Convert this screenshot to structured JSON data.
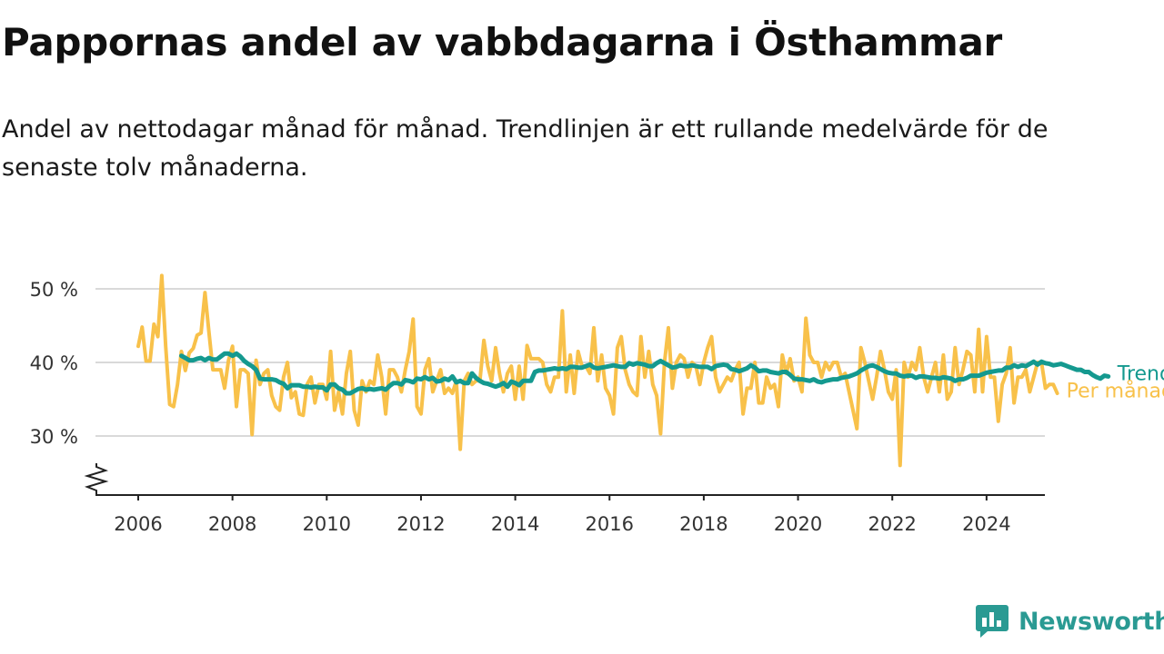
{
  "header": {
    "title": "Pappornas andel av vabbdagarna i Östhammar",
    "subtitle": "Andel av nettodagar månad för månad. Trendlinjen är ett rullande medelvärde för de senaste tolv månaderna."
  },
  "brand": {
    "name": "Newsworthy",
    "icon": "bar-chart-logo-icon"
  },
  "colors": {
    "monthly": "#f8c14a",
    "trend": "#14998f",
    "grid": "#d9d9d9",
    "axis": "#222222"
  },
  "chart_data": {
    "type": "line",
    "title": "Pappornas andel av vabbdagarna i Östhammar",
    "xlabel": "",
    "ylabel": "",
    "xlim": [
      2006.0,
      2024.35
    ],
    "ylim": [
      22,
      50
    ],
    "y_axis_break": true,
    "y_ticks": [
      30,
      40,
      50
    ],
    "y_tick_labels": [
      "30 %",
      "40 %",
      "50 %"
    ],
    "x_ticks": [
      2006,
      2008,
      2010,
      2012,
      2014,
      2016,
      2018,
      2020,
      2022,
      2024
    ],
    "x_tick_labels": [
      "2006",
      "2008",
      "2010",
      "2012",
      "2014",
      "2016",
      "2018",
      "2020",
      "2022",
      "2024"
    ],
    "grid": true,
    "legend": "direct labels at line ends, right",
    "series": [
      {
        "name": "Per månad",
        "start": 2006.0,
        "step_months": 1,
        "values": [
          42.2,
          44.8,
          40.2,
          40.2,
          45.2,
          43.5,
          51.8,
          42.2,
          34.3,
          34.0,
          37.0,
          41.5,
          38.9,
          41.3,
          41.9,
          43.7,
          44.0,
          49.5,
          44.2,
          39.0,
          39.0,
          39.0,
          36.5,
          40.3,
          42.2,
          34.0,
          39.0,
          39.0,
          38.5,
          30.2,
          40.3,
          37.0,
          38.5,
          39.0,
          35.5,
          34.0,
          33.5,
          38.0,
          40.0,
          35.2,
          36.0,
          33.0,
          32.8,
          37.0,
          38.0,
          34.5,
          37.0,
          37.0,
          35.0,
          41.5,
          33.5,
          36.0,
          33.0,
          38.5,
          41.5,
          33.5,
          31.5,
          37.5,
          36.0,
          37.5,
          37.0,
          41.0,
          38.0,
          33.0,
          39.0,
          39.0,
          38.0,
          36.0,
          39.0,
          41.5,
          45.9,
          34.0,
          33.0,
          39.0,
          40.5,
          36.0,
          37.5,
          39.0,
          35.8,
          36.5,
          35.8,
          37.5,
          28.2,
          37.5,
          38.5,
          37.0,
          37.5,
          37.5,
          43.0,
          39.5,
          37.5,
          42.0,
          38.5,
          36.0,
          38.5,
          39.5,
          35.0,
          39.5,
          35.0,
          42.3,
          40.5,
          40.5,
          40.5,
          40.0,
          37.0,
          36.0,
          38.0,
          38.0,
          47.0,
          36.0,
          41.0,
          35.8,
          41.5,
          39.5,
          39.5,
          38.5,
          44.7,
          37.5,
          41.0,
          36.5,
          35.5,
          33.0,
          42.0,
          43.5,
          39.0,
          37.0,
          36.0,
          35.5,
          43.5,
          38.0,
          41.5,
          37.0,
          35.5,
          30.3,
          40.0,
          44.7,
          36.5,
          40.0,
          41.0,
          40.5,
          38.0,
          40.0,
          39.5,
          37.0,
          40.0,
          42.0,
          43.5,
          38.0,
          36.0,
          37.0,
          38.0,
          37.5,
          39.0,
          40.0,
          33.0,
          36.5,
          36.5,
          40.0,
          34.5,
          34.5,
          38.0,
          36.5,
          37.0,
          34.0,
          41.0,
          38.5,
          40.5,
          37.5,
          38.0,
          36.0,
          46.0,
          41.0,
          40.0,
          40.0,
          38.0,
          40.0,
          39.0,
          40.0,
          40.0,
          38.0,
          38.5,
          36.0,
          33.5,
          31.0,
          42.0,
          40.0,
          37.5,
          35.0,
          38.0,
          41.5,
          39.0,
          36.0,
          35.0,
          39.0,
          26.0,
          40.0,
          38.0,
          40.0,
          39.0,
          42.0,
          38.0,
          36.0,
          38.0,
          40.0,
          36.0,
          41.0,
          35.0,
          36.0,
          42.0,
          37.0,
          39.0,
          41.5,
          41.0,
          36.0,
          44.5,
          36.0,
          43.5,
          38.0,
          38.0,
          32.0,
          37.0,
          38.5,
          42.0,
          34.5,
          38.0,
          38.0,
          39.0,
          36.0,
          38.0,
          40.0,
          40.0,
          36.5,
          37.0,
          37.0,
          35.8
        ]
      },
      {
        "name": "Trend",
        "start": 2006.9167,
        "step_months": 1,
        "values": [
          40.9,
          40.6,
          40.3,
          40.3,
          40.5,
          40.6,
          40.3,
          40.6,
          40.4,
          40.4,
          40.8,
          41.2,
          41.2,
          40.9,
          41.2,
          40.8,
          40.2,
          39.8,
          39.5,
          39.0,
          37.8,
          37.7,
          37.7,
          37.7,
          37.6,
          37.3,
          37.1,
          36.5,
          36.9,
          36.9,
          36.9,
          36.7,
          36.7,
          36.6,
          36.7,
          36.6,
          36.6,
          36.2,
          37.0,
          37.0,
          36.5,
          36.3,
          35.8,
          35.8,
          36.1,
          36.4,
          36.5,
          36.3,
          36.4,
          36.3,
          36.4,
          36.5,
          36.3,
          36.8,
          37.2,
          37.2,
          37.0,
          37.6,
          37.5,
          37.3,
          37.8,
          37.7,
          38.0,
          37.7,
          37.9,
          37.4,
          37.5,
          37.8,
          37.6,
          38.1,
          37.3,
          37.5,
          37.2,
          37.2,
          38.5,
          37.9,
          37.5,
          37.2,
          37.1,
          36.9,
          36.7,
          36.9,
          37.2,
          36.7,
          37.4,
          37.2,
          36.9,
          37.5,
          37.5,
          37.5,
          38.7,
          38.9,
          38.9,
          39.0,
          39.1,
          39.2,
          39.1,
          39.2,
          39.1,
          39.4,
          39.4,
          39.3,
          39.3,
          39.5,
          39.7,
          39.3,
          39.2,
          39.3,
          39.4,
          39.5,
          39.6,
          39.5,
          39.4,
          39.4,
          39.9,
          39.7,
          39.9,
          39.8,
          39.7,
          39.5,
          39.5,
          39.9,
          40.2,
          39.9,
          39.6,
          39.3,
          39.4,
          39.6,
          39.5,
          39.5,
          39.6,
          39.5,
          39.4,
          39.4,
          39.4,
          39.1,
          39.5,
          39.6,
          39.7,
          39.6,
          39.1,
          39.0,
          38.8,
          39.0,
          39.2,
          39.6,
          39.3,
          38.8,
          38.9,
          38.9,
          38.7,
          38.6,
          38.5,
          38.7,
          38.7,
          38.3,
          37.8,
          37.7,
          37.7,
          37.6,
          37.5,
          37.7,
          37.4,
          37.3,
          37.5,
          37.6,
          37.7,
          37.7,
          37.9,
          38.0,
          38.1,
          38.3,
          38.5,
          38.9,
          39.2,
          39.5,
          39.6,
          39.4,
          39.1,
          38.8,
          38.6,
          38.5,
          38.5,
          38.2,
          38.1,
          38.2,
          38.2,
          37.9,
          38.1,
          38.1,
          38.0,
          37.9,
          37.9,
          37.8,
          38.0,
          37.9,
          37.8,
          37.5,
          37.7,
          37.7,
          37.9,
          38.2,
          38.2,
          38.2,
          38.4,
          38.6,
          38.7,
          38.8,
          38.9,
          38.9,
          39.3,
          39.3,
          39.6,
          39.4,
          39.6,
          39.5,
          39.8,
          40.1,
          39.7,
          40.1,
          39.9,
          39.8,
          39.6,
          39.7,
          39.8,
          39.6,
          39.4,
          39.2,
          39.0,
          39.0,
          38.7,
          38.7,
          38.3,
          38.0,
          37.8,
          38.2,
          38.1
        ]
      }
    ]
  }
}
